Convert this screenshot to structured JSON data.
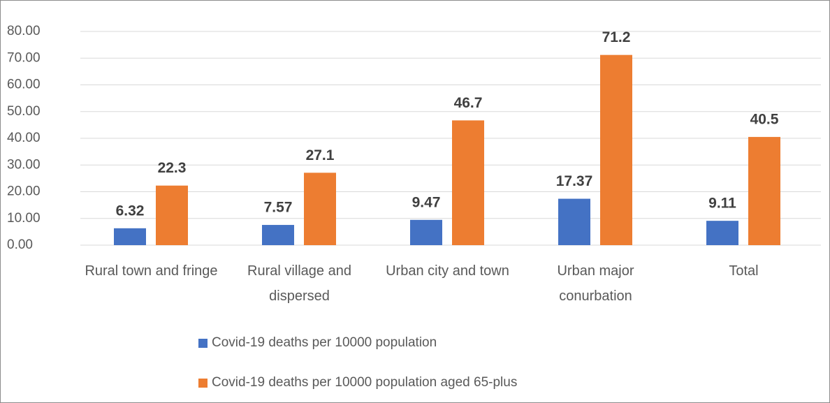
{
  "chart_data": {
    "type": "bar",
    "categories": [
      "Rural town and fringe",
      "Rural village and dispersed",
      "Urban city and town",
      "Urban major conurbation",
      "Total"
    ],
    "series": [
      {
        "name": "Covid-19 deaths per 10000 population",
        "color": "#4472c4",
        "values": [
          6.32,
          7.57,
          9.47,
          17.37,
          9.11
        ]
      },
      {
        "name": "Covid-19 deaths per 10000 population aged 65-plus",
        "color": "#ed7d31",
        "values": [
          22.3,
          27.1,
          46.7,
          71.2,
          40.5
        ]
      }
    ],
    "ylim": [
      0,
      80
    ],
    "yticks": [
      {
        "value": 0,
        "label": "0.00"
      },
      {
        "value": 10,
        "label": "10.00"
      },
      {
        "value": 20,
        "label": "20.00"
      },
      {
        "value": 30,
        "label": "30.00"
      },
      {
        "value": 40,
        "label": "40.00"
      },
      {
        "value": 50,
        "label": "50.00"
      },
      {
        "value": 60,
        "label": "60.00"
      },
      {
        "value": 70,
        "label": "70.00"
      },
      {
        "value": 80,
        "label": "80.00"
      }
    ],
    "grid": true,
    "legend": "bottom"
  }
}
